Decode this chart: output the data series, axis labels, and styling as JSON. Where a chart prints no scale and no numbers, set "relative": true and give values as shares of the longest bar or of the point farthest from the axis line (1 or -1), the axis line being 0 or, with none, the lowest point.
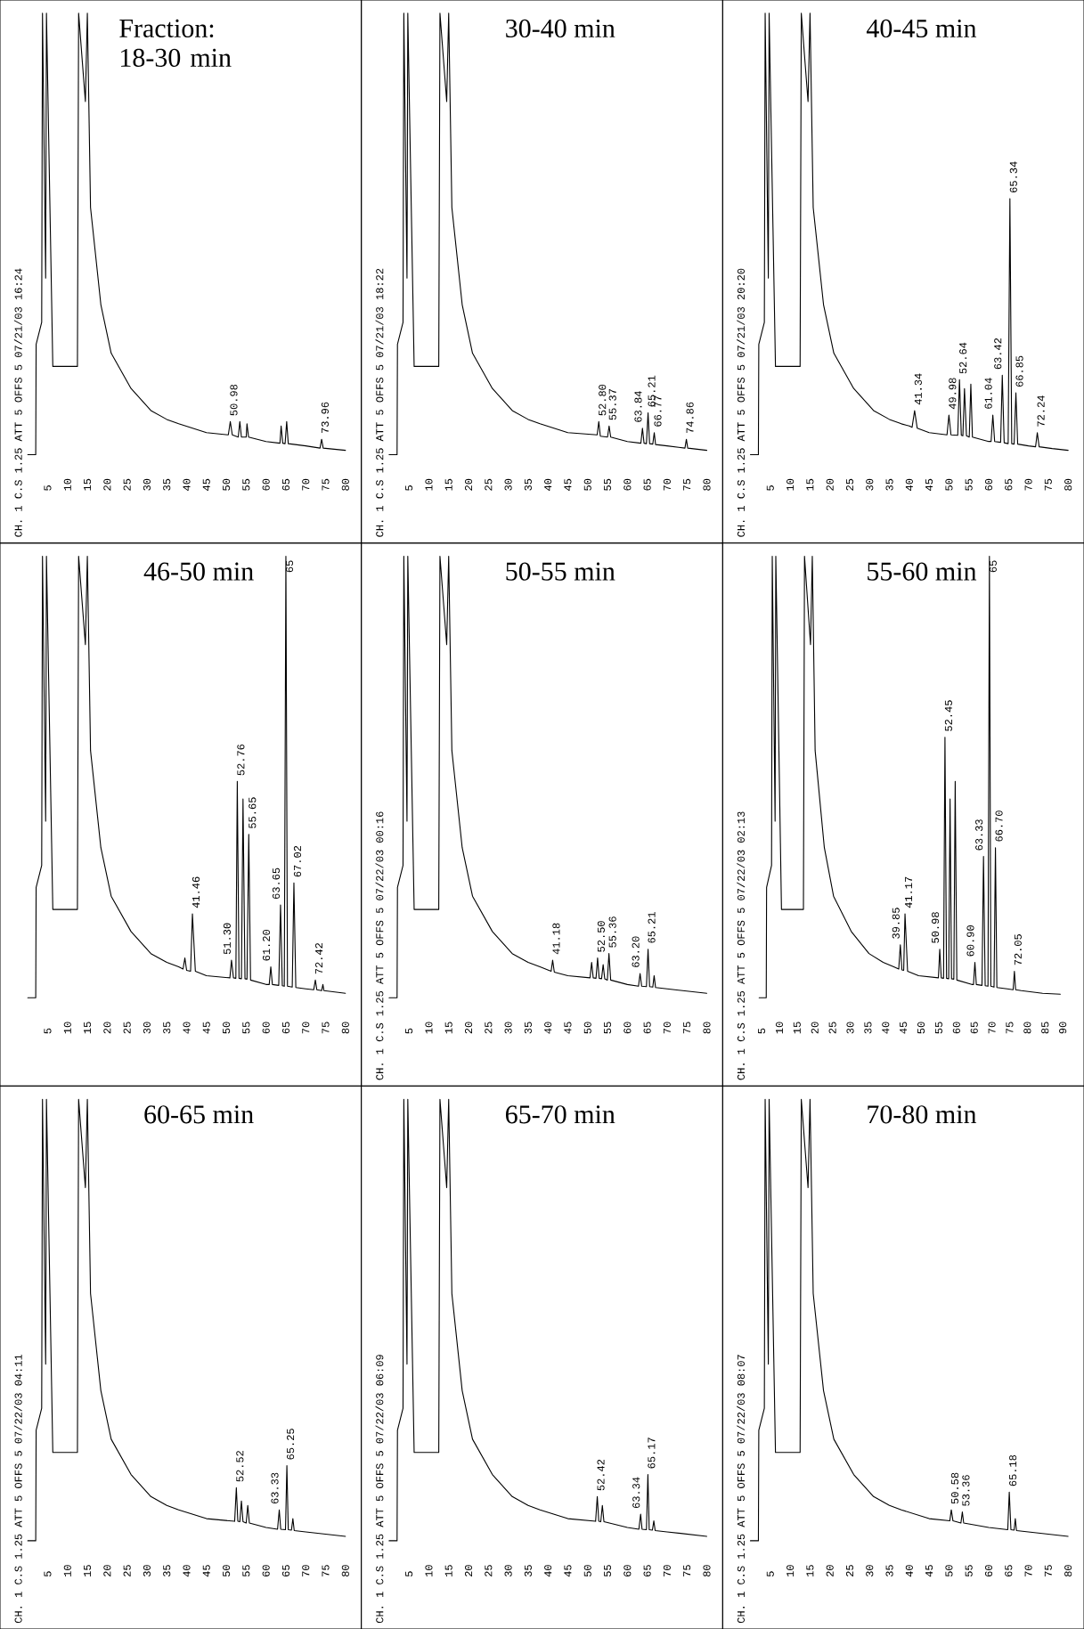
{
  "chart_data": [
    {
      "type": "line",
      "title": "Fraction: 18-30 min",
      "relative": true,
      "color": "#000000",
      "xlim": [
        -7,
        84
      ],
      "xticks": [
        5,
        10,
        15,
        20,
        25,
        30,
        35,
        40,
        45,
        50,
        55,
        60,
        65,
        70,
        75,
        80
      ],
      "x": [
        0,
        2,
        2.1,
        3.5,
        3.7,
        4.5,
        4.7,
        6,
        6.3,
        12.5,
        12.8,
        14.5,
        15,
        15.8,
        18.4,
        21,
        26,
        31,
        35,
        38,
        45,
        50.5,
        51,
        51.5,
        53,
        53.4,
        53.8,
        55,
        55.2,
        55.6,
        60,
        63.5,
        63.8,
        64.2,
        64.8,
        65.2,
        65.6,
        70,
        73.6,
        74,
        74.4,
        80
      ],
      "values": [
        0,
        0,
        0.25,
        0.3,
        1,
        0.4,
        1,
        0.35,
        0.2,
        0.2,
        1,
        0.8,
        1,
        0.56,
        0.34,
        0.23,
        0.15,
        0.1,
        0.08,
        0.07,
        0.05,
        0.045,
        0.075,
        0.045,
        0.04,
        0.075,
        0.04,
        0.04,
        0.07,
        0.04,
        0.03,
        0.026,
        0.065,
        0.026,
        0.025,
        0.075,
        0.025,
        0.02,
        0.015,
        0.035,
        0.015,
        0.01
      ],
      "annotations": [
        "CH. 1 C.S 1.25 ATT 5 OFFS 5 07/21/03 16:24",
        {
          "text": "50.98",
          "x": 50.98,
          "y": 0.075
        },
        {
          "text": "73.96",
          "x": 73.96,
          "y": 0.035
        }
      ]
    },
    {
      "type": "line",
      "title": "30-40 min",
      "relative": true,
      "color": "#000000",
      "xlim": [
        -7,
        84
      ],
      "xticks": [
        5,
        10,
        15,
        20,
        25,
        30,
        35,
        40,
        45,
        50,
        55,
        60,
        65,
        70,
        75,
        80
      ],
      "x": [
        0,
        2,
        2.1,
        3.5,
        3.7,
        4.5,
        4.7,
        6,
        6.3,
        12.5,
        12.8,
        14.5,
        15,
        15.8,
        18.4,
        21,
        26,
        31,
        35,
        38,
        45,
        52.4,
        52.8,
        53.2,
        55,
        55.4,
        55.8,
        60,
        63.4,
        63.8,
        64.2,
        64.8,
        65.21,
        65.6,
        66.4,
        66.77,
        67.1,
        70,
        74.5,
        74.86,
        75.2,
        80
      ],
      "values": [
        0,
        0,
        0.25,
        0.3,
        1,
        0.4,
        1,
        0.35,
        0.2,
        0.2,
        1,
        0.8,
        1,
        0.56,
        0.34,
        0.23,
        0.15,
        0.1,
        0.08,
        0.07,
        0.05,
        0.045,
        0.075,
        0.042,
        0.04,
        0.065,
        0.04,
        0.03,
        0.026,
        0.06,
        0.026,
        0.025,
        0.095,
        0.025,
        0.024,
        0.05,
        0.023,
        0.02,
        0.015,
        0.035,
        0.015,
        0.01
      ],
      "annotations": [
        "CH. 1 C.S 1.25 ATT 5 OFFS 5 07/21/03 18:22",
        {
          "text": "52.80",
          "x": 52.8,
          "y": 0.075
        },
        {
          "text": "55.37",
          "x": 55.37,
          "y": 0.065
        },
        {
          "text": "63.84",
          "x": 63.84,
          "y": 0.06
        },
        {
          "text": "65.21",
          "x": 65.21,
          "y": 0.095
        },
        {
          "text": "66.77",
          "x": 66.77,
          "y": 0.05
        },
        {
          "text": "74.86",
          "x": 74.86,
          "y": 0.035
        }
      ]
    },
    {
      "type": "line",
      "title": "40-45 min",
      "relative": true,
      "color": "#000000",
      "xlim": [
        -7,
        84
      ],
      "xticks": [
        5,
        10,
        15,
        20,
        25,
        30,
        35,
        40,
        45,
        50,
        55,
        60,
        65,
        70,
        75,
        80
      ],
      "x": [
        0,
        2,
        2.1,
        3.5,
        3.7,
        4.5,
        4.7,
        6,
        6.3,
        12.5,
        12.8,
        14.5,
        15,
        15.8,
        18.4,
        21,
        26,
        31,
        35,
        38,
        40,
        40.7,
        41.34,
        42,
        45,
        49.5,
        49.98,
        50.5,
        52.2,
        52.64,
        53.1,
        53.5,
        53.9,
        54.4,
        55.1,
        55.5,
        55.9,
        60,
        60.6,
        61.04,
        61.5,
        63,
        63.42,
        63.9,
        64.9,
        65.34,
        65.8,
        66.4,
        66.85,
        67.3,
        70,
        71.8,
        72.24,
        72.7,
        76,
        80
      ],
      "values": [
        0,
        0,
        0.25,
        0.3,
        1,
        0.4,
        1,
        0.35,
        0.2,
        0.2,
        1,
        0.8,
        1,
        0.56,
        0.34,
        0.23,
        0.15,
        0.1,
        0.08,
        0.07,
        0.065,
        0.062,
        0.1,
        0.06,
        0.05,
        0.045,
        0.09,
        0.045,
        0.044,
        0.17,
        0.044,
        0.043,
        0.15,
        0.043,
        0.04,
        0.16,
        0.04,
        0.03,
        0.03,
        0.09,
        0.03,
        0.028,
        0.18,
        0.027,
        0.025,
        0.58,
        0.025,
        0.024,
        0.14,
        0.024,
        0.02,
        0.018,
        0.05,
        0.018,
        0.014,
        0.01
      ],
      "annotations": [
        "CH. 1 C.S 1.25 ATT 5 OFFS 5 07/21/03 20:20",
        {
          "text": "41.34",
          "x": 41.34,
          "y": 0.1
        },
        {
          "text": "49.98",
          "x": 49.98,
          "y": 0.09
        },
        {
          "text": "52.64",
          "x": 52.64,
          "y": 0.17
        },
        {
          "text": "61.04",
          "x": 61.04,
          "y": 0.09
        },
        {
          "text": "63.42",
          "x": 63.42,
          "y": 0.18
        },
        {
          "text": "65.34",
          "x": 65.34,
          "y": 0.58
        },
        {
          "text": "66.85",
          "x": 66.85,
          "y": 0.14
        },
        {
          "text": "72.24",
          "x": 72.24,
          "y": 0.05
        }
      ]
    },
    {
      "type": "line",
      "title": "46-50 min",
      "relative": true,
      "color": "#000000",
      "xlim": [
        -7,
        84
      ],
      "xticks": [
        5,
        10,
        15,
        20,
        25,
        30,
        35,
        40,
        45,
        50,
        55,
        60,
        65,
        70,
        75,
        80
      ],
      "x": [
        0,
        2,
        2.1,
        3.5,
        3.7,
        4.5,
        4.7,
        6,
        6.3,
        12.5,
        12.8,
        14.5,
        15,
        15.8,
        18.4,
        21,
        26,
        31,
        35,
        38,
        39.1,
        39.56,
        40,
        41,
        41.46,
        42.2,
        45,
        50.9,
        51.3,
        51.8,
        52.4,
        52.76,
        53.2,
        53.8,
        54.2,
        54.7,
        55.2,
        55.65,
        56.1,
        60,
        60.8,
        61.2,
        61.6,
        63.2,
        63.65,
        64.1,
        64.6,
        65,
        65.4,
        66.6,
        67.02,
        67.5,
        70,
        72,
        72.42,
        72.8,
        74,
        74.32,
        74.6,
        80
      ],
      "values": [
        0,
        0,
        0.25,
        0.3,
        1,
        0.4,
        1,
        0.35,
        0.2,
        0.2,
        1,
        0.8,
        1,
        0.56,
        0.34,
        0.23,
        0.15,
        0.1,
        0.08,
        0.07,
        0.065,
        0.09,
        0.062,
        0.06,
        0.19,
        0.06,
        0.05,
        0.045,
        0.085,
        0.045,
        0.044,
        0.49,
        0.044,
        0.043,
        0.45,
        0.043,
        0.042,
        0.37,
        0.04,
        0.03,
        0.03,
        0.07,
        0.03,
        0.028,
        0.21,
        0.027,
        0.026,
        1,
        0.026,
        0.024,
        0.26,
        0.023,
        0.02,
        0.018,
        0.04,
        0.018,
        0.016,
        0.03,
        0.016,
        0.01
      ],
      "annotations": [
        {
          "text": "41.46",
          "x": 41.46,
          "y": 0.19
        },
        {
          "text": "51.30",
          "x": 51.3,
          "y": 0.085
        },
        {
          "text": "52.76",
          "x": 52.76,
          "y": 0.49
        },
        {
          "text": "55.65",
          "x": 55.65,
          "y": 0.37
        },
        {
          "text": "61.20",
          "x": 61.2,
          "y": 0.07
        },
        {
          "text": "63.65",
          "x": 63.65,
          "y": 0.21
        },
        {
          "text": "65",
          "x": 65,
          "y": 1
        },
        {
          "text": "67.02",
          "x": 67.02,
          "y": 0.26
        },
        {
          "text": "72.42",
          "x": 72.42,
          "y": 0.04
        }
      ]
    },
    {
      "type": "line",
      "title": "50-55 min",
      "relative": true,
      "color": "#000000",
      "xlim": [
        -7,
        84
      ],
      "xticks": [
        5,
        10,
        15,
        20,
        25,
        30,
        35,
        40,
        45,
        50,
        55,
        60,
        65,
        70,
        75,
        80
      ],
      "x": [
        0,
        2,
        2.1,
        3.5,
        3.7,
        4.5,
        4.7,
        6,
        6.3,
        12.5,
        12.8,
        14.5,
        15,
        15.8,
        18.4,
        21,
        26,
        31,
        35,
        38,
        40.8,
        41.18,
        41.6,
        45,
        50.6,
        51,
        51.4,
        52.1,
        52.5,
        52.9,
        53.5,
        53.9,
        54.3,
        54.96,
        55.36,
        55.8,
        60,
        62.8,
        63.2,
        63.6,
        64.8,
        65.21,
        65.6,
        66.4,
        66.74,
        67.1,
        70,
        80
      ],
      "values": [
        0,
        0,
        0.25,
        0.3,
        1,
        0.4,
        1,
        0.35,
        0.2,
        0.2,
        1,
        0.8,
        1,
        0.56,
        0.34,
        0.23,
        0.15,
        0.1,
        0.08,
        0.07,
        0.06,
        0.085,
        0.058,
        0.05,
        0.045,
        0.08,
        0.045,
        0.044,
        0.09,
        0.044,
        0.043,
        0.075,
        0.043,
        0.04,
        0.1,
        0.04,
        0.03,
        0.026,
        0.055,
        0.026,
        0.025,
        0.11,
        0.025,
        0.024,
        0.05,
        0.023,
        0.02,
        0.01
      ],
      "annotations": [
        "CH. 1 C.S 1.25 ATT 5 OFFS 5 07/22/03 00:16",
        {
          "text": "41.18",
          "x": 41.18,
          "y": 0.085
        },
        {
          "text": "52.50",
          "x": 52.5,
          "y": 0.09
        },
        {
          "text": "55.36",
          "x": 55.36,
          "y": 0.1
        },
        {
          "text": "63.20",
          "x": 63.2,
          "y": 0.055
        },
        {
          "text": "65.21",
          "x": 65.21,
          "y": 0.11
        }
      ]
    },
    {
      "type": "line",
      "title": "55-60 min",
      "relative": true,
      "color": "#000000",
      "xlim": [
        -6,
        96
      ],
      "xticks": [
        5,
        10,
        15,
        20,
        25,
        30,
        35,
        40,
        45,
        50,
        55,
        60,
        65,
        70,
        75,
        80,
        85,
        90
      ],
      "x": [
        4.3,
        6.3,
        6.4,
        7.8,
        8,
        8.8,
        9,
        10.3,
        10.6,
        16.8,
        17.1,
        18.8,
        19.3,
        20.1,
        22.7,
        25.3,
        30.3,
        35.3,
        39.3,
        42.3,
        43.7,
        44.15,
        44.6,
        45.1,
        45.47,
        46.2,
        49.3,
        54.9,
        55.28,
        55.7,
        56.35,
        56.75,
        57.2,
        57.8,
        58.19,
        58.6,
        59.25,
        59.64,
        60.1,
        64.3,
        64.8,
        65.2,
        65.6,
        67.2,
        67.63,
        68.1,
        68.9,
        69.3,
        69.7,
        70.6,
        71,
        71.4,
        74.3,
        76,
        76.35,
        76.7,
        78.3,
        84.3,
        89.3
      ],
      "values": [
        0,
        0,
        0.25,
        0.3,
        1,
        0.4,
        1,
        0.35,
        0.2,
        0.2,
        1,
        0.8,
        1,
        0.56,
        0.34,
        0.23,
        0.15,
        0.1,
        0.08,
        0.07,
        0.065,
        0.12,
        0.063,
        0.062,
        0.19,
        0.06,
        0.05,
        0.045,
        0.11,
        0.045,
        0.044,
        0.59,
        0.044,
        0.043,
        0.45,
        0.043,
        0.042,
        0.49,
        0.04,
        0.03,
        0.03,
        0.08,
        0.03,
        0.028,
        0.32,
        0.027,
        0.026,
        1,
        0.026,
        0.024,
        0.34,
        0.023,
        0.02,
        0.018,
        0.06,
        0.018,
        0.016,
        0.01,
        0.008
      ],
      "annotations": [
        "CH. 1 C.S 1.25 ATT 5 OFFS 5 07/22/03 02:13",
        {
          "text": "39.85",
          "x": 44.15,
          "y": 0.12
        },
        {
          "text": "41.17",
          "x": 45.47,
          "y": 0.19
        },
        {
          "text": "50.98",
          "x": 55.28,
          "y": 0.11
        },
        {
          "text": "52.45",
          "x": 56.75,
          "y": 0.59
        },
        {
          "text": "60.90",
          "x": 65.2,
          "y": 0.08
        },
        {
          "text": "63.33",
          "x": 67.63,
          "y": 0.32
        },
        {
          "text": "65",
          "x": 69.3,
          "y": 1
        },
        {
          "text": "66.70",
          "x": 71,
          "y": 0.34
        },
        {
          "text": "72.05",
          "x": 76.35,
          "y": 0.06
        }
      ]
    },
    {
      "type": "line",
      "title": "60-65 min",
      "relative": true,
      "color": "#000000",
      "xlim": [
        -7,
        84
      ],
      "xticks": [
        5,
        10,
        15,
        20,
        25,
        30,
        35,
        40,
        45,
        50,
        55,
        60,
        65,
        70,
        75,
        80
      ],
      "x": [
        0,
        2,
        2.1,
        3.5,
        3.7,
        4.5,
        4.7,
        6,
        6.3,
        12.5,
        12.8,
        14.5,
        15,
        15.8,
        18.4,
        21,
        26,
        31,
        35,
        38,
        45,
        52.1,
        52.52,
        52.9,
        53.4,
        53.8,
        54.2,
        55,
        55.4,
        55.8,
        60,
        62.9,
        63.33,
        63.7,
        64.9,
        65.25,
        65.6,
        66.4,
        66.76,
        67.1,
        70,
        80
      ],
      "values": [
        0,
        0,
        0.25,
        0.3,
        1,
        0.4,
        1,
        0.35,
        0.2,
        0.2,
        1,
        0.8,
        1,
        0.56,
        0.34,
        0.23,
        0.15,
        0.1,
        0.08,
        0.07,
        0.05,
        0.044,
        0.12,
        0.044,
        0.043,
        0.09,
        0.043,
        0.04,
        0.08,
        0.04,
        0.03,
        0.026,
        0.07,
        0.026,
        0.025,
        0.17,
        0.025,
        0.024,
        0.05,
        0.023,
        0.02,
        0.01
      ],
      "annotations": [
        "CH. 1 C.S 1.25 ATT 5 OFFS 5 07/22/03 04:11",
        {
          "text": "52.52",
          "x": 52.52,
          "y": 0.12
        },
        {
          "text": "63.33",
          "x": 63.33,
          "y": 0.07
        },
        {
          "text": "65.25",
          "x": 65.25,
          "y": 0.17
        }
      ]
    },
    {
      "type": "line",
      "title": "65-70 min",
      "relative": true,
      "color": "#000000",
      "xlim": [
        -7,
        84
      ],
      "xticks": [
        5,
        10,
        15,
        20,
        25,
        30,
        35,
        40,
        45,
        50,
        55,
        60,
        65,
        70,
        75,
        80
      ],
      "x": [
        0,
        2,
        2.1,
        3.5,
        3.7,
        4.5,
        4.7,
        6,
        6.3,
        12.5,
        12.8,
        14.5,
        15,
        15.8,
        18.4,
        21,
        26,
        31,
        35,
        38,
        45,
        52,
        52.42,
        52.8,
        53.3,
        53.7,
        54.1,
        60,
        62.9,
        63.34,
        63.7,
        64.8,
        65.17,
        65.5,
        66.3,
        66.66,
        67,
        70,
        80
      ],
      "values": [
        0,
        0,
        0.25,
        0.3,
        1,
        0.4,
        1,
        0.35,
        0.2,
        0.2,
        1,
        0.8,
        1,
        0.56,
        0.34,
        0.23,
        0.15,
        0.1,
        0.08,
        0.07,
        0.05,
        0.044,
        0.1,
        0.044,
        0.043,
        0.08,
        0.043,
        0.03,
        0.026,
        0.06,
        0.026,
        0.025,
        0.15,
        0.025,
        0.024,
        0.045,
        0.023,
        0.02,
        0.01
      ],
      "annotations": [
        "CH. 1 C.S 1.25 ATT 5 OFFS 5 07/22/03 06:09",
        {
          "text": "52.42",
          "x": 52.42,
          "y": 0.1
        },
        {
          "text": "63.34",
          "x": 63.34,
          "y": 0.06
        },
        {
          "text": "65.17",
          "x": 65.17,
          "y": 0.15
        }
      ]
    },
    {
      "type": "line",
      "title": "70-80 min",
      "relative": true,
      "color": "#000000",
      "xlim": [
        -7,
        84
      ],
      "xticks": [
        5,
        10,
        15,
        20,
        25,
        30,
        35,
        40,
        45,
        50,
        55,
        60,
        65,
        70,
        75,
        80
      ],
      "x": [
        0,
        2,
        2.1,
        3.5,
        3.7,
        4.5,
        4.7,
        6,
        6.3,
        12.5,
        12.8,
        14.5,
        15,
        15.8,
        18.4,
        21,
        26,
        31,
        35,
        38,
        45,
        50.2,
        50.58,
        51,
        53,
        53.36,
        53.7,
        60,
        64.8,
        65.18,
        65.6,
        66.4,
        66.7,
        67,
        70,
        80
      ],
      "values": [
        0,
        0,
        0.25,
        0.3,
        1,
        0.4,
        1,
        0.35,
        0.2,
        0.2,
        1,
        0.8,
        1,
        0.56,
        0.34,
        0.23,
        0.15,
        0.1,
        0.08,
        0.07,
        0.05,
        0.045,
        0.07,
        0.045,
        0.04,
        0.065,
        0.04,
        0.03,
        0.025,
        0.11,
        0.025,
        0.024,
        0.05,
        0.023,
        0.02,
        0.01
      ],
      "annotations": [
        "CH. 1 C.S 1.25 ATT 5 OFFS 5 07/22/03 08:07",
        {
          "text": "50.58",
          "x": 50.58,
          "y": 0.07
        },
        {
          "text": "53.36",
          "x": 53.36,
          "y": 0.065
        },
        {
          "text": "65.18",
          "x": 65.18,
          "y": 0.11
        }
      ]
    }
  ]
}
